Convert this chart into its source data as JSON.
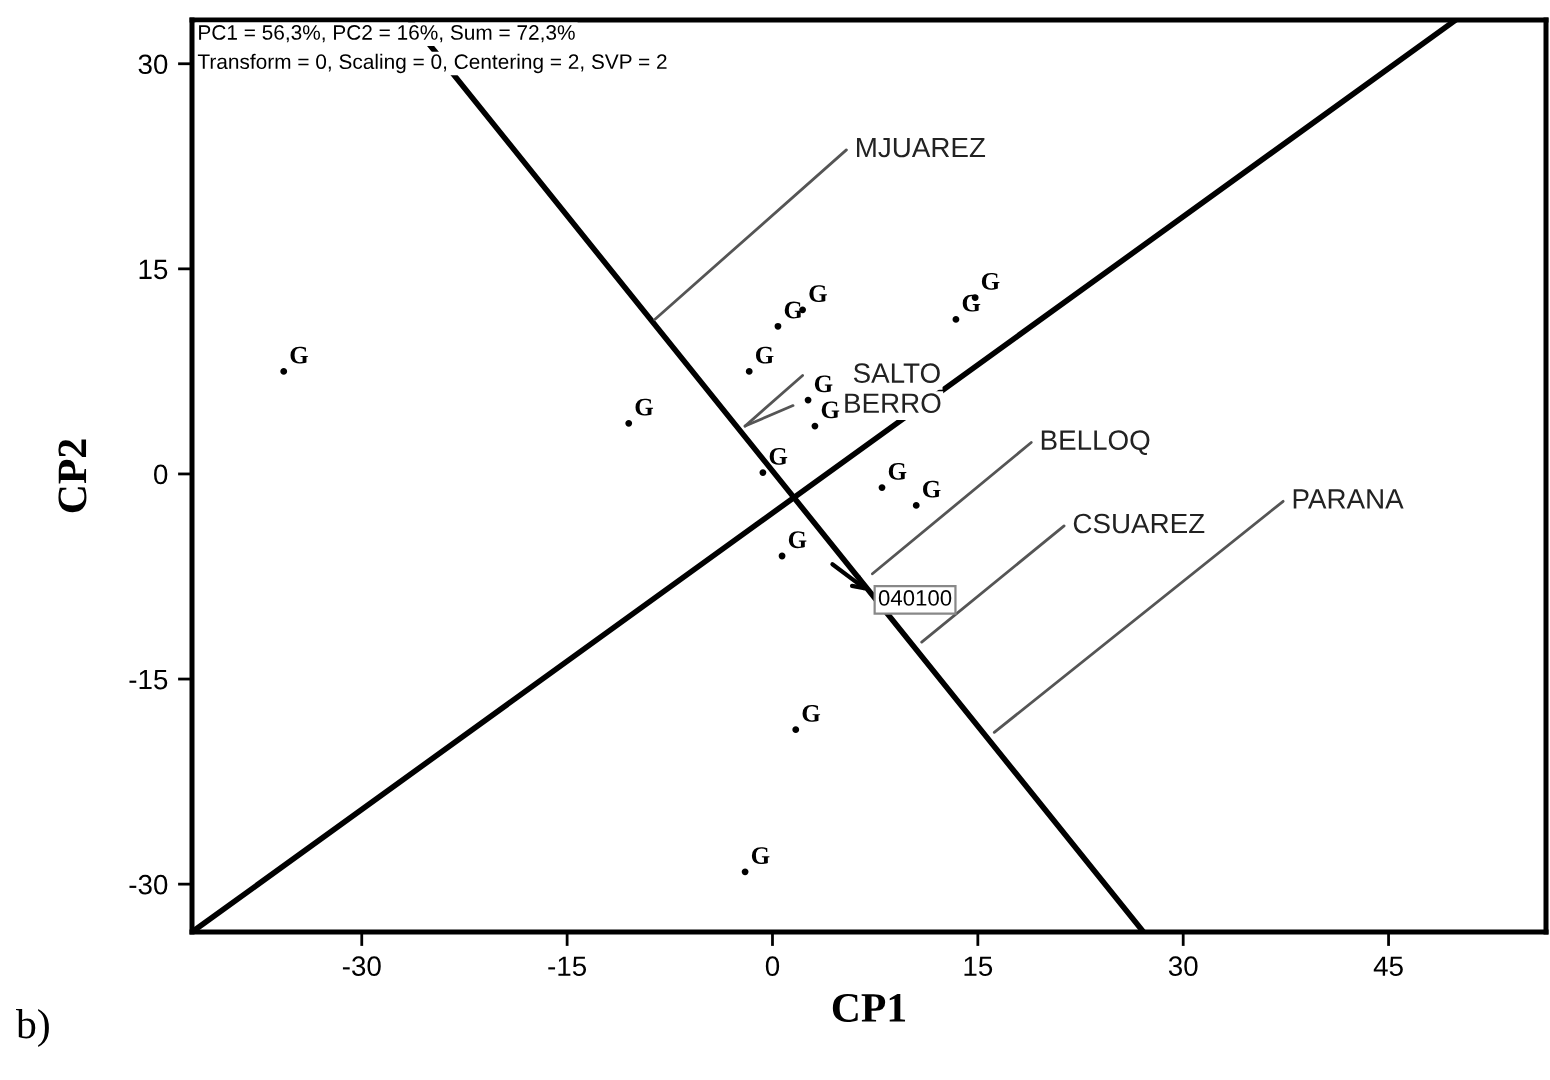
{
  "chart_data": {
    "type": "scatter",
    "xlabel": "CP1",
    "ylabel": "CP2",
    "xlim": [
      -42.4,
      56.5
    ],
    "ylim": [
      -33.5,
      33.2
    ],
    "xticks": [
      -30,
      -15,
      0,
      15,
      30,
      45
    ],
    "yticks": [
      -30,
      -15,
      0,
      15,
      30
    ],
    "grid": false,
    "legend": false,
    "marker": "none",
    "series": [
      {
        "color": "#000000",
        "marker": "circle",
        "x": [
          -35.7,
          -10.5,
          -1.7,
          0.4,
          2.2,
          -0.7,
          3.1,
          2.6,
          8.0,
          10.5,
          0.7,
          1.7,
          -2.0,
          13.4,
          14.8
        ],
        "values": [
          7.5,
          3.7,
          7.5,
          10.8,
          12.0,
          0.1,
          3.5,
          5.4,
          -1.0,
          -2.3,
          -6.0,
          -18.7,
          -29.1,
          11.3,
          12.9
        ],
        "value_labels": [
          "G",
          "G",
          "G",
          "G",
          "G",
          "G",
          "G",
          "G",
          "G",
          "G",
          "G",
          "G",
          "G",
          "G",
          "G"
        ]
      },
      {
        "type": "line",
        "color": "#000000",
        "x": [
          -42.4,
          49.9
        ],
        "values": [
          -33.5,
          33.2
        ]
      },
      {
        "type": "line",
        "color": "#000000",
        "x": [
          -26.5,
          27.1
        ],
        "values": [
          33.2,
          -33.5
        ]
      },
      {
        "type": "line",
        "color": "#555555",
        "name": "MJUAREZ",
        "x": [
          -8.6,
          5.4
        ],
        "values": [
          11.3,
          23.7
        ]
      },
      {
        "type": "line",
        "color": "#555555",
        "name": "SALTO",
        "x": [
          -2.0,
          2.2
        ],
        "values": [
          3.5,
          7.2
        ]
      },
      {
        "type": "line",
        "color": "#555555",
        "name": "BERRO",
        "x": [
          -2.0,
          1.5
        ],
        "values": [
          3.5,
          5.0
        ]
      },
      {
        "type": "line",
        "color": "#555555",
        "name": "BELLOQ",
        "x": [
          7.3,
          18.9
        ],
        "values": [
          -7.3,
          2.3
        ]
      },
      {
        "type": "line",
        "color": "#555555",
        "name": "CSUAREZ",
        "x": [
          10.9,
          21.3
        ],
        "values": [
          -12.3,
          -3.8
        ]
      },
      {
        "type": "line",
        "color": "#555555",
        "name": "PARANA",
        "x": [
          16.2,
          37.3
        ],
        "values": [
          -18.9,
          -2.0
        ]
      }
    ],
    "annotations": [
      {
        "text": "040100",
        "x": 7.3,
        "y": -8.8
      },
      "PC1 = 56,3%, PC2 = 16%, Sum = 72,3%",
      "Transform = 0, Scaling = 0, Centering = 2, SVP = 2",
      "b)"
    ]
  }
}
